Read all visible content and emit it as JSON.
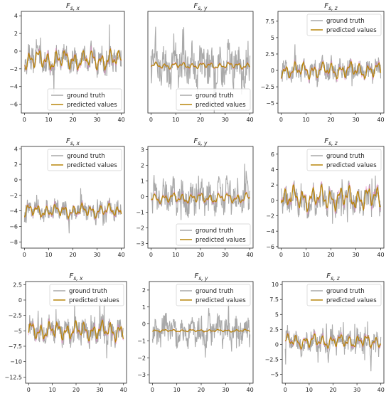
{
  "colors": {
    "ground_truth": "#a9a9a9",
    "predicted": "#b8860b",
    "overlay": "#e377c2",
    "axis": "#222222"
  },
  "chart_data": [
    {
      "type": "line",
      "title": "Fs,x",
      "title_main": "F",
      "title_sub": "s, x",
      "x": [
        0,
        40
      ],
      "xticks": [
        0,
        10,
        20,
        30,
        40
      ],
      "ylim": [
        -7,
        4.5
      ],
      "yticks": [
        -6,
        -4,
        -2,
        0,
        2,
        4
      ],
      "legend": "bottom-right",
      "series": [
        {
          "name": "ground truth",
          "mean": -1,
          "amplitude": 2.2
        },
        {
          "name": "predicted values",
          "mean": -1,
          "amplitude": 1.2
        }
      ]
    },
    {
      "type": "line",
      "title": "Fs,y",
      "title_main": "F",
      "title_sub": "s, y",
      "x": [
        0,
        40
      ],
      "xticks": [
        0,
        10,
        20,
        30,
        40
      ],
      "ylim": [
        -0.95,
        0.55
      ],
      "yticks": [],
      "legend": "bottom-right",
      "series": [
        {
          "name": "ground truth",
          "mean": -0.25,
          "amplitude": 0.45
        },
        {
          "name": "predicted values",
          "mean": -0.25,
          "amplitude": 0.05
        }
      ]
    },
    {
      "type": "line",
      "title": "Fs,z",
      "title_main": "F",
      "title_sub": "s, z",
      "x": [
        0,
        40
      ],
      "xticks": [
        0,
        10,
        20,
        30,
        40
      ],
      "ylim": [
        -6.5,
        9
      ],
      "yticks": [
        -5.0,
        -2.5,
        0.0,
        2.5,
        5.0,
        7.5
      ],
      "legend": "top-right",
      "series": [
        {
          "name": "ground truth",
          "mean": 0,
          "amplitude": 2.6
        },
        {
          "name": "predicted values",
          "mean": 0,
          "amplitude": 1.3
        }
      ]
    },
    {
      "type": "line",
      "title": "Fs,x",
      "title_main": "F",
      "title_sub": "s, x",
      "x": [
        0,
        40
      ],
      "xticks": [
        0,
        10,
        20,
        30,
        40
      ],
      "ylim": [
        -8.8,
        4.3
      ],
      "yticks": [
        -8,
        -6,
        -4,
        -2,
        0,
        2,
        4
      ],
      "legend": "top-right",
      "series": [
        {
          "name": "ground truth",
          "mean": -4,
          "amplitude": 1.8
        },
        {
          "name": "predicted values",
          "mean": -4,
          "amplitude": 0.9
        }
      ]
    },
    {
      "type": "line",
      "title": "Fs,y",
      "title_main": "F",
      "title_sub": "s, y",
      "x": [
        0,
        40
      ],
      "xticks": [
        0,
        10,
        20,
        30,
        40
      ],
      "ylim": [
        -3.3,
        3.2
      ],
      "yticks": [
        -3,
        -2,
        -1,
        0,
        1,
        2,
        3
      ],
      "legend": "bottom-right",
      "series": [
        {
          "name": "ground truth",
          "mean": 0,
          "amplitude": 1.6
        },
        {
          "name": "predicted values",
          "mean": -0.1,
          "amplitude": 0.35
        }
      ]
    },
    {
      "type": "line",
      "title": "Fs,z",
      "title_main": "F",
      "title_sub": "s, z",
      "x": [
        0,
        40
      ],
      "xticks": [
        0,
        10,
        20,
        30,
        40
      ],
      "ylim": [
        -6.2,
        7
      ],
      "yticks": [
        -6,
        -4,
        -2,
        0,
        2,
        4,
        6
      ],
      "legend": "top-right",
      "series": [
        {
          "name": "ground truth",
          "mean": 0,
          "amplitude": 2.8
        },
        {
          "name": "predicted values",
          "mean": 0.3,
          "amplitude": 1.6
        }
      ]
    },
    {
      "type": "line",
      "title": "Fs,x",
      "title_main": "F",
      "title_sub": "s, x",
      "x": [
        0,
        40
      ],
      "xticks": [
        0,
        10,
        20,
        30,
        40
      ],
      "ylim": [
        -13.5,
        3
      ],
      "yticks": [
        -12.5,
        -10.0,
        -7.5,
        -5.0,
        -2.5,
        0.0,
        2.5
      ],
      "legend": "top-right",
      "series": [
        {
          "name": "ground truth",
          "mean": -5,
          "amplitude": 3.2
        },
        {
          "name": "predicted values",
          "mean": -5,
          "amplitude": 1.6
        }
      ]
    },
    {
      "type": "line",
      "title": "Fs,y",
      "title_main": "F",
      "title_sub": "s, y",
      "x": [
        0,
        40
      ],
      "xticks": [
        0,
        10,
        20,
        30,
        40
      ],
      "ylim": [
        -3.5,
        2.5
      ],
      "yticks": [
        -3,
        -2,
        -1,
        0,
        1,
        2
      ],
      "legend": "top-right",
      "series": [
        {
          "name": "ground truth",
          "mean": -0.4,
          "amplitude": 1.3
        },
        {
          "name": "predicted values",
          "mean": -0.4,
          "amplitude": 0.08
        }
      ]
    },
    {
      "type": "line",
      "title": "Fs,z",
      "title_main": "F",
      "title_sub": "s, z",
      "x": [
        0,
        40
      ],
      "xticks": [
        0,
        10,
        20,
        30,
        40
      ],
      "ylim": [
        -6.5,
        10.5
      ],
      "yticks": [
        -5.0,
        -2.5,
        0.0,
        2.5,
        5.0,
        7.5,
        10.0
      ],
      "legend": "top-right",
      "series": [
        {
          "name": "ground truth",
          "mean": 0.5,
          "amplitude": 2.8
        },
        {
          "name": "predicted values",
          "mean": 0.5,
          "amplitude": 1.2
        }
      ]
    }
  ]
}
